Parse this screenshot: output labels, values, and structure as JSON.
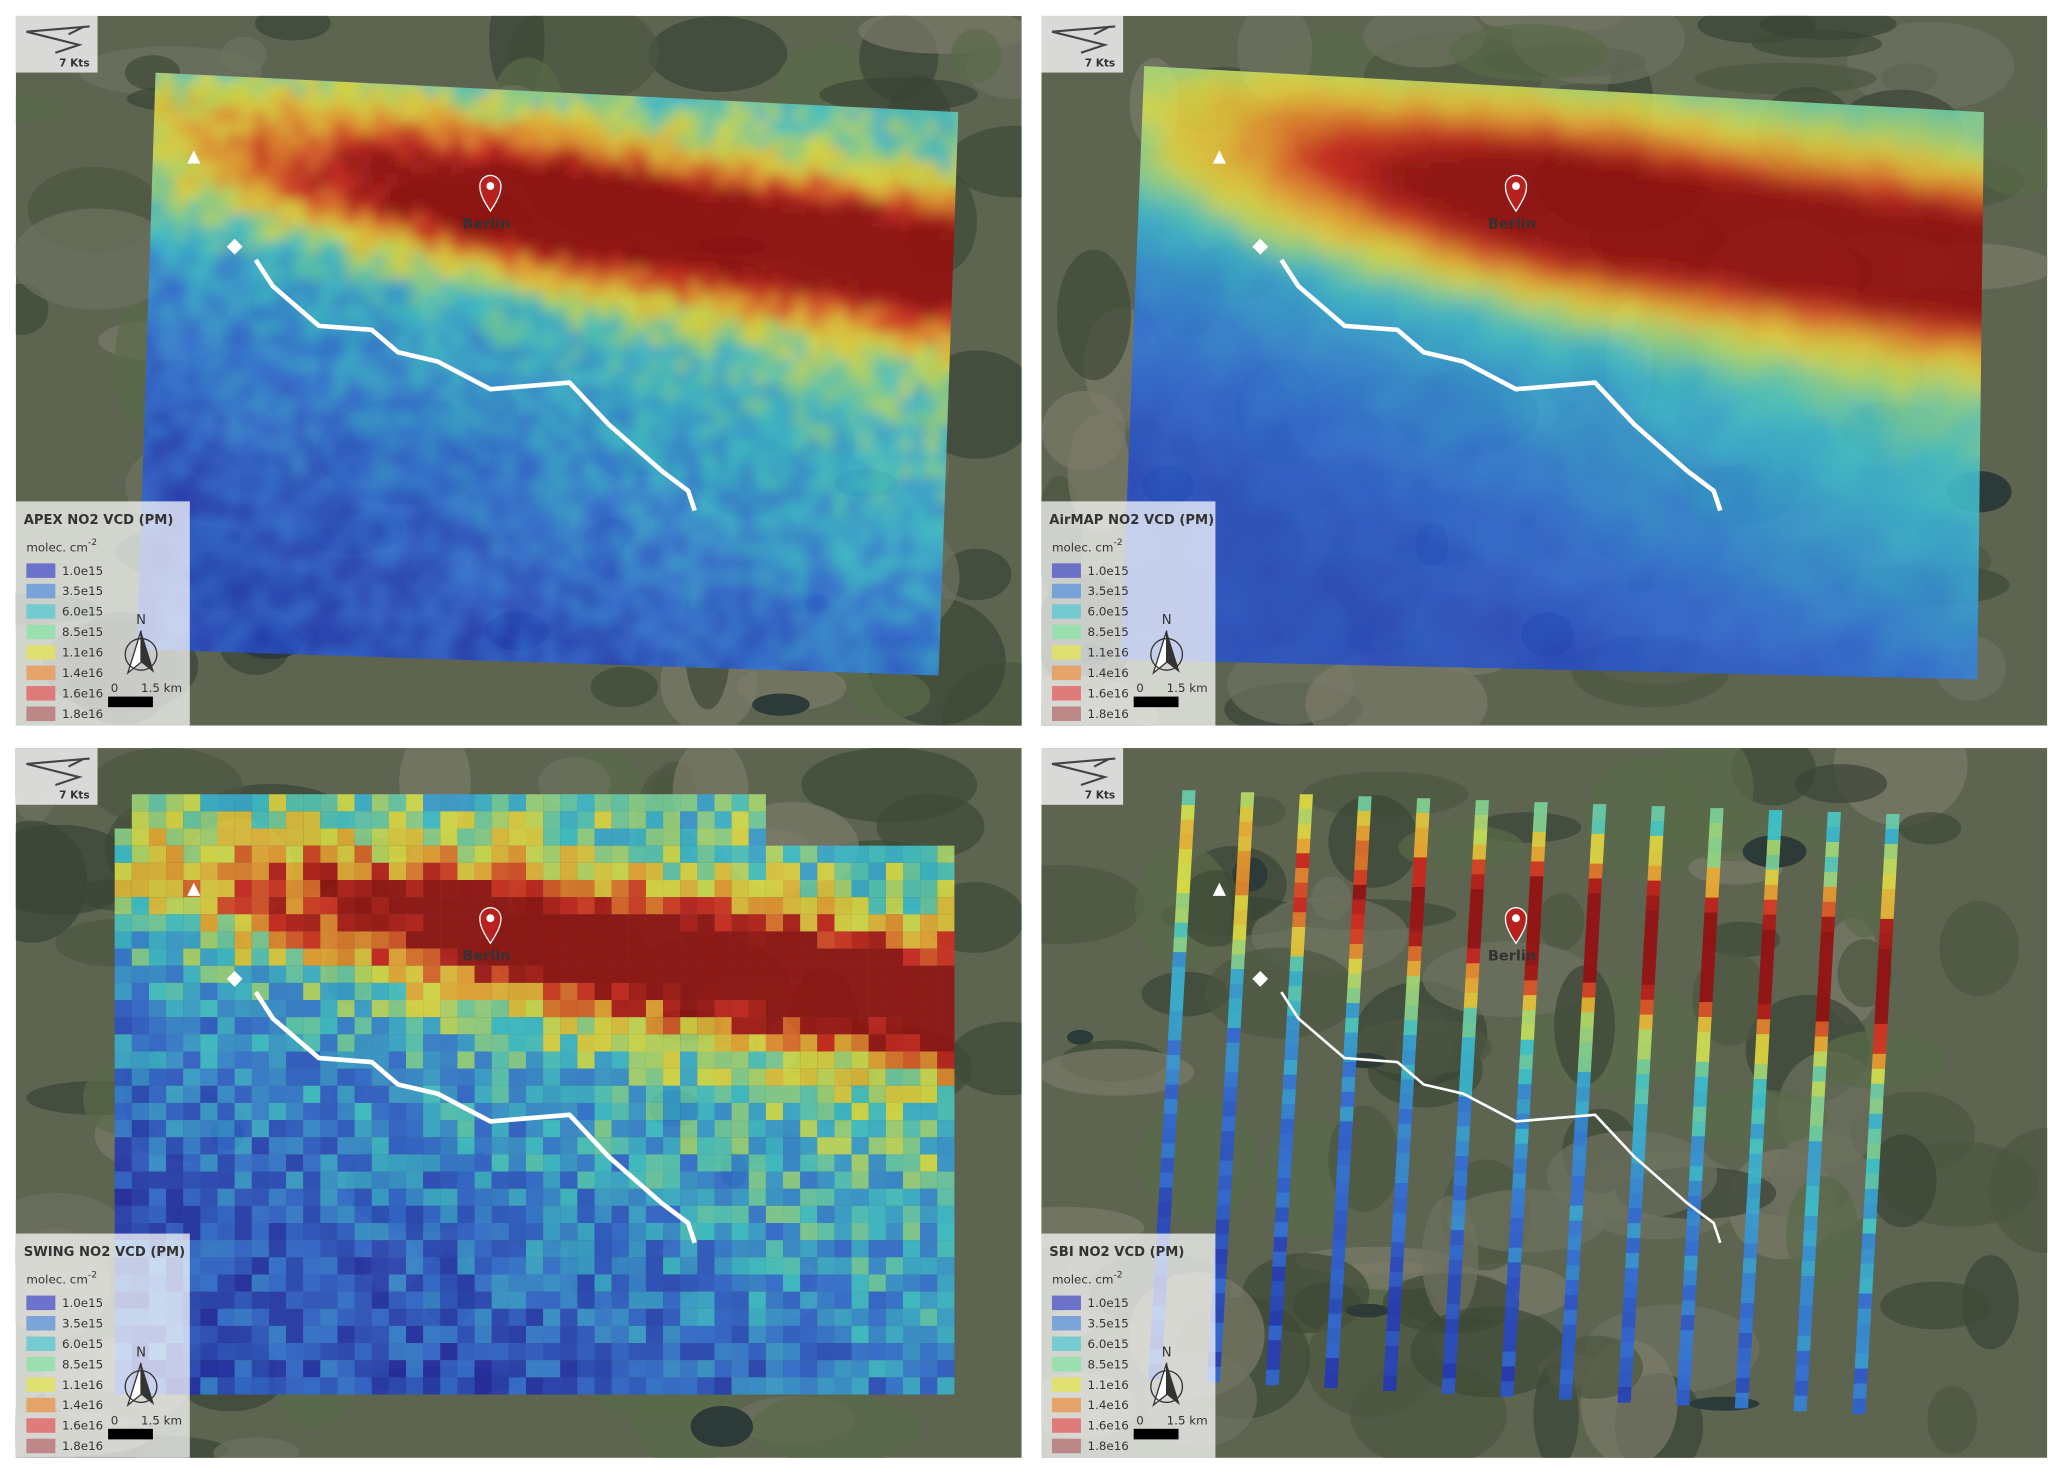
{
  "panels": [
    {
      "title": "APEX NO2 VCD (PM)"
    },
    {
      "title": "AirMAP NO2 VCD (PM)"
    },
    {
      "title": "SWING NO2 VCD (PM)"
    },
    {
      "title": "SBI NO2 VCD (PM)"
    }
  ],
  "legend": {
    "unit": "molec. cm",
    "unit_exponent": "-2",
    "entries": [
      "1.0e15",
      "3.5e15",
      "6.0e15",
      "8.5e15",
      "1.1e16",
      "1.4e16",
      "1.6e16",
      "1.8e16"
    ],
    "colors": [
      "#5b60c8",
      "#6b9bd9",
      "#66c9d1",
      "#92e0aa",
      "#e2e262",
      "#e99b5b",
      "#e06b6b",
      "#b87a7a"
    ]
  },
  "wind": "7 Kts",
  "north": "N",
  "scale": {
    "start": "0",
    "end": "1.5 km"
  },
  "place": "Berlin"
}
